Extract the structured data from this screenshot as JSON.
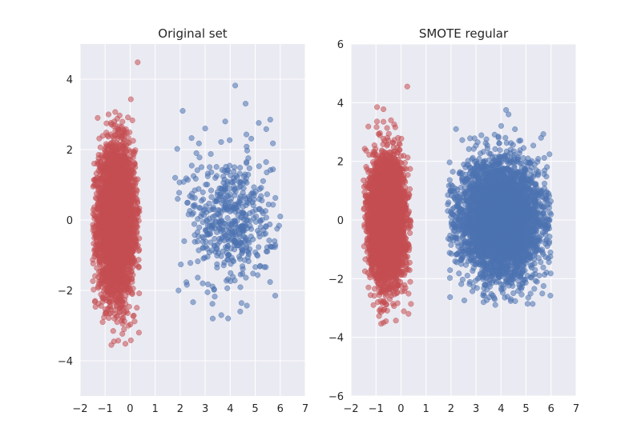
{
  "colors": {
    "background": "#ffffff",
    "panel_background": "#eaeaf2",
    "grid": "#ffffff",
    "minority_class": "#c44e52",
    "majority_class": "#4c72b0",
    "text": "#262626"
  },
  "chart_data": [
    {
      "type": "scatter",
      "title": "Original set",
      "xlabel": "",
      "ylabel": "",
      "xlim": [
        -2,
        7
      ],
      "ylim": [
        -5,
        5
      ],
      "grid": true,
      "x_ticks": [
        -2,
        -1,
        0,
        1,
        2,
        3,
        4,
        5,
        6,
        7
      ],
      "x_tick_labels": [
        "−2",
        "−1",
        "0",
        "1",
        "2",
        "3",
        "4",
        "5",
        "6",
        "7"
      ],
      "y_ticks": [
        -4,
        -2,
        0,
        2,
        4
      ],
      "y_tick_labels": [
        "−4",
        "−2",
        "0",
        "2",
        "4"
      ],
      "series": [
        {
          "color": "#c44e52",
          "count_estimate": 4500,
          "cluster": {
            "center": [
              -0.55,
              0.0
            ],
            "x_sd": 0.35,
            "y_sd": 1.0,
            "x_range": [
              -1.5,
              0.4
            ],
            "y_range": [
              -3.6,
              4.5
            ]
          },
          "notable_points": [
            [
              0.3,
              4.48
            ],
            [
              -0.75,
              -3.55
            ],
            [
              -0.65,
              -3.45
            ],
            [
              0.35,
              -3.2
            ],
            [
              -1.4,
              -2.3
            ],
            [
              -1.1,
              -2.9
            ],
            [
              -0.3,
              -2.95
            ],
            [
              -1.3,
              2.9
            ]
          ]
        },
        {
          "color": "#4c72b0",
          "count_estimate": 500,
          "cluster": {
            "center": [
              4.0,
              0.0
            ],
            "x_sd": 0.85,
            "y_sd": 1.0,
            "x_range": [
              1.7,
              6.0
            ],
            "y_range": [
              -2.9,
              3.9
            ]
          },
          "notable_points": [
            [
              4.2,
              3.82
            ],
            [
              2.1,
              3.1
            ],
            [
              3.8,
              2.8
            ],
            [
              5.6,
              2.85
            ],
            [
              3.0,
              2.6
            ],
            [
              1.8,
              1.2
            ],
            [
              1.9,
              0.6
            ],
            [
              6.0,
              0.1
            ],
            [
              5.8,
              -2.15
            ],
            [
              3.3,
              -2.8
            ],
            [
              4.4,
              -2.6
            ],
            [
              2.9,
              -1.8
            ]
          ]
        }
      ]
    },
    {
      "type": "scatter",
      "title": "SMOTE regular",
      "xlabel": "",
      "ylabel": "",
      "xlim": [
        -2,
        7
      ],
      "ylim": [
        -6,
        6
      ],
      "grid": true,
      "x_ticks": [
        -2,
        -1,
        0,
        1,
        2,
        3,
        4,
        5,
        6,
        7
      ],
      "x_tick_labels": [
        "−2",
        "−1",
        "0",
        "1",
        "2",
        "3",
        "4",
        "5",
        "6",
        "7"
      ],
      "y_ticks": [
        -6,
        -4,
        -2,
        0,
        2,
        4,
        6
      ],
      "y_tick_labels": [
        "−6",
        "−4",
        "−2",
        "0",
        "2",
        "4",
        "6"
      ],
      "series": [
        {
          "color": "#c44e52",
          "count_estimate": 4500,
          "cluster": {
            "center": [
              -0.55,
              0.0
            ],
            "x_sd": 0.35,
            "y_sd": 1.0,
            "x_range": [
              -1.5,
              0.4
            ],
            "y_range": [
              -3.6,
              4.5
            ]
          },
          "notable_points": [
            [
              0.25,
              4.55
            ],
            [
              -0.7,
              -3.5
            ],
            [
              -0.6,
              -3.45
            ],
            [
              0.3,
              -3.2
            ],
            [
              -1.3,
              -2.3
            ],
            [
              -1.1,
              -2.9
            ],
            [
              -0.4,
              3.4
            ],
            [
              -0.7,
              3.35
            ]
          ]
        },
        {
          "color": "#4c72b0",
          "count_estimate": 4500,
          "cluster": {
            "center": [
              4.0,
              0.0
            ],
            "x_sd": 0.8,
            "y_sd": 0.95,
            "x_range": [
              1.8,
              6.0
            ],
            "y_range": [
              -2.9,
              3.8
            ]
          },
          "notable_points": [
            [
              4.2,
              3.75
            ],
            [
              4.3,
              3.6
            ],
            [
              2.2,
              3.1
            ],
            [
              3.9,
              2.8
            ],
            [
              5.6,
              2.8
            ],
            [
              2.0,
              1.2
            ],
            [
              1.9,
              0.6
            ],
            [
              5.9,
              0.9
            ],
            [
              5.7,
              -2.25
            ],
            [
              3.3,
              -2.8
            ],
            [
              4.4,
              -2.7
            ],
            [
              3.3,
              -2.5
            ]
          ]
        }
      ]
    }
  ]
}
